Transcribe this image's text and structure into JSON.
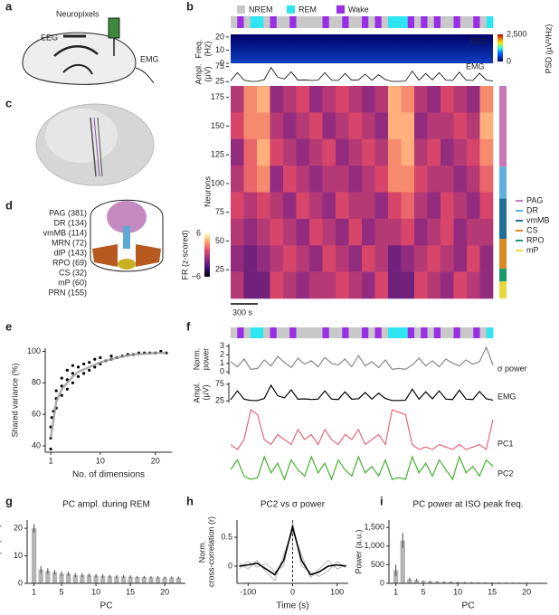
{
  "panel_labels": [
    "a",
    "b",
    "c",
    "d",
    "e",
    "f",
    "g",
    "h",
    "i"
  ],
  "panel_a": {
    "probe": "Neuropixels",
    "eeg": "EEG",
    "emg": "EMG"
  },
  "panel_d": {
    "regions": [
      {
        "label": "PAG (381)",
        "color": "#c48ac0"
      },
      {
        "label": "DR (134)",
        "color": "#5fa9d6"
      },
      {
        "label": "vmMB (114)",
        "color": "#1f6d9a"
      },
      {
        "label": "MRN (72)",
        "color": "#eaa0d6"
      },
      {
        "label": "dlP (143)",
        "color": "#e0876a"
      },
      {
        "label": "RPO (69)",
        "color": "#1a9a7a"
      },
      {
        "label": "CS (32)",
        "color": "#d88a20"
      },
      {
        "label": "mP (60)",
        "color": "#c8b020"
      },
      {
        "label": "PRN (155)",
        "color": "#b85a20"
      }
    ]
  },
  "chart_data": [
    {
      "type": "raster",
      "states": [
        {
          "name": "NREM",
          "color": "#c8c8c8"
        },
        {
          "name": "REM",
          "color": "#2ee6f2"
        },
        {
          "name": "Wake",
          "color": "#9a2de6"
        }
      ],
      "hypnogram": [
        0,
        2,
        0,
        1,
        1,
        0,
        2,
        0,
        0,
        2,
        0,
        0,
        0,
        0,
        2,
        0,
        0,
        2,
        0,
        0,
        2,
        0,
        2,
        0,
        1,
        1,
        1,
        2,
        0,
        2,
        0,
        2,
        0,
        0,
        2,
        0,
        0,
        2,
        0,
        1
      ],
      "freq": {
        "ylabel": [
          "Freq.",
          "(Hz)"
        ],
        "ylim": [
          0,
          22
        ],
        "yticks": [
          0,
          10,
          20
        ],
        "label": "EEG"
      },
      "psd": {
        "label": "PSD (µV²/Hz)",
        "ticks": [
          0,
          {
            "value": 2500,
            "label": "2,500"
          }
        ]
      },
      "emg": {
        "ylabel": [
          "Ampl.",
          "(µV)"
        ],
        "ylim": [
          20,
          80
        ],
        "yticks": [
          25,
          75
        ],
        "label": "EMG",
        "color": "#000000",
        "values": [
          28,
          55,
          30,
          26,
          26,
          32,
          72,
          40,
          34,
          58,
          30,
          31,
          29,
          30,
          55,
          30,
          29,
          52,
          30,
          31,
          50,
          30,
          48,
          32,
          26,
          26,
          27,
          60,
          30,
          52,
          31,
          55,
          30,
          29,
          57,
          30,
          29,
          53,
          31,
          27
        ]
      },
      "neurons": {
        "ylabel": "Neurons",
        "ylim": [
          0,
          185
        ],
        "yticks": [
          25,
          50,
          75,
          100,
          125,
          150,
          175
        ],
        "matrix": [
          [
            0,
            3,
            4,
            -1,
            0,
            1,
            -1,
            0,
            1,
            0,
            -1,
            0,
            4,
            3,
            0,
            -1,
            1,
            0,
            -1,
            3
          ],
          [
            1,
            3,
            3,
            0,
            -1,
            0,
            1,
            -1,
            0,
            1,
            0,
            -1,
            4,
            4,
            -1,
            0,
            0,
            1,
            0,
            4
          ],
          [
            -1,
            2,
            4,
            1,
            0,
            -1,
            0,
            1,
            -1,
            0,
            1,
            0,
            3,
            4,
            0,
            1,
            -1,
            0,
            1,
            3
          ],
          [
            0,
            2,
            3,
            -1,
            1,
            0,
            -1,
            0,
            0,
            -1,
            0,
            1,
            3,
            3,
            1,
            0,
            0,
            -1,
            0,
            2
          ],
          [
            1,
            0,
            1,
            0,
            -1,
            1,
            0,
            -1,
            1,
            0,
            0,
            -1,
            1,
            2,
            0,
            -1,
            1,
            0,
            -1,
            1
          ],
          [
            0,
            -1,
            0,
            1,
            0,
            -1,
            1,
            0,
            -1,
            1,
            -1,
            0,
            0,
            1,
            -1,
            0,
            1,
            -1,
            0,
            0
          ],
          [
            -1,
            -2,
            -1,
            0,
            1,
            0,
            -1,
            1,
            0,
            -1,
            1,
            0,
            -2,
            -1,
            0,
            1,
            0,
            -1,
            1,
            -1
          ],
          [
            0,
            -2,
            -2,
            1,
            0,
            -1,
            0,
            0,
            1,
            0,
            -1,
            1,
            -2,
            -2,
            1,
            0,
            -1,
            1,
            0,
            -1
          ]
        ]
      },
      "fr": {
        "label": "FR (z-scored)",
        "ticks": [
          6,
          {
            "value": -6,
            "label": "−6"
          }
        ]
      },
      "regions": [
        {
          "name": "PAG",
          "color": "#c977b8"
        },
        {
          "name": "DR",
          "color": "#5fb0e0"
        },
        {
          "name": "vmMB",
          "color": "#1f6d9a"
        },
        {
          "name": "CS",
          "color": "#d88a20"
        },
        {
          "name": "RPO",
          "color": "#1a9a6a"
        },
        {
          "name": "mP",
          "color": "#e8d840"
        }
      ],
      "scale_bar": "300 s"
    },
    {
      "type": "traces",
      "series": [
        {
          "name": "σ power",
          "ylabel": [
            "Norm.",
            "power"
          ],
          "ylim": [
            -0.3,
            3.3
          ],
          "yticks": [
            0,
            1,
            2,
            3
          ],
          "color": "#888888",
          "values": [
            1.2,
            0.6,
            1.5,
            0.3,
            0.4,
            1.4,
            0.7,
            1.8,
            1.1,
            0.5,
            1.6,
            0.9,
            1.3,
            0.6,
            1.7,
            1.0,
            0.8,
            1.5,
            0.6,
            1.9,
            0.7,
            1.2,
            0.5,
            1.4,
            0.3,
            0.4,
            0.3,
            0.8,
            1.6,
            0.7,
            1.3,
            0.6,
            1.5,
            1.0,
            0.7,
            1.4,
            0.9,
            1.2,
            2.9,
            0.8
          ]
        },
        {
          "name": "EMG",
          "ylabel": [
            "Ampl.",
            "(µV)"
          ],
          "ylim": [
            20,
            80
          ],
          "yticks": [
            25,
            75
          ],
          "color": "#000000",
          "values": [
            28,
            55,
            30,
            26,
            26,
            32,
            72,
            40,
            34,
            58,
            30,
            31,
            29,
            30,
            55,
            30,
            29,
            52,
            30,
            31,
            50,
            30,
            48,
            32,
            26,
            26,
            27,
            60,
            30,
            52,
            31,
            55,
            30,
            29,
            57,
            30,
            29,
            53,
            31,
            27
          ]
        },
        {
          "name": "PC1",
          "color": "#e8687e",
          "values": [
            0.2,
            0.1,
            0.3,
            0.9,
            0.8,
            0.3,
            0.2,
            0.4,
            0.3,
            0.2,
            0.5,
            0.3,
            0.4,
            0.2,
            0.5,
            0.3,
            0.2,
            0.4,
            0.3,
            0.5,
            0.2,
            0.3,
            0.4,
            0.2,
            0.9,
            0.85,
            0.8,
            0.2,
            0.1,
            0.15,
            0.1,
            0.2,
            0.15,
            0.1,
            0.2,
            0.1,
            0.15,
            0.2,
            0.1,
            0.7
          ]
        },
        {
          "name": "PC2",
          "color": "#44b030",
          "values": [
            0.5,
            0.8,
            0.3,
            0.2,
            0.25,
            0.9,
            0.4,
            0.7,
            0.2,
            0.8,
            0.5,
            0.3,
            0.9,
            0.4,
            0.7,
            0.2,
            0.8,
            0.5,
            0.3,
            0.9,
            0.4,
            0.6,
            0.3,
            0.8,
            0.2,
            0.25,
            0.2,
            0.9,
            0.4,
            0.7,
            0.3,
            0.8,
            0.5,
            0.2,
            0.9,
            0.4,
            0.6,
            0.3,
            0.8,
            0.6
          ]
        }
      ]
    },
    {
      "type": "scatter",
      "xlabel": "No. of dimensions",
      "ylabel": "Shared variance (%)",
      "xlim": [
        0,
        23
      ],
      "xticks": [
        1,
        10,
        20
      ],
      "ylim": [
        36,
        102
      ],
      "yticks": [
        40,
        60,
        80,
        100
      ],
      "series": [
        {
          "style": "points",
          "color": "#000000",
          "x": [
            1,
            1,
            1,
            1.2,
            1.5,
            2,
            2,
            2,
            3,
            3,
            3,
            4,
            4,
            4,
            5,
            5,
            5,
            6,
            6,
            7,
            7,
            8,
            8,
            9,
            9,
            10,
            10,
            11,
            12,
            12,
            13,
            14,
            15,
            16,
            17,
            18,
            19,
            20,
            21,
            22
          ],
          "values": [
            38,
            45,
            52,
            58,
            62,
            64,
            70,
            75,
            72,
            78,
            83,
            76,
            82,
            88,
            80,
            86,
            91,
            84,
            90,
            86,
            92,
            88,
            93,
            90,
            95,
            92,
            96,
            94,
            95,
            97,
            96,
            97,
            98,
            98,
            99,
            99,
            99,
            99,
            100,
            99
          ]
        },
        {
          "style": "line",
          "color": "#999999",
          "x": [
            1,
            2,
            3,
            4,
            5,
            6,
            8,
            10,
            13,
            16,
            20,
            22
          ],
          "values": [
            45,
            68,
            76,
            80,
            84,
            87,
            90,
            93,
            96,
            98,
            99,
            99
          ]
        }
      ]
    },
    {
      "type": "bar",
      "title": "PC ampl. during REM",
      "xlabel": "PC",
      "ylabel": "PC ampl. (a.u.)",
      "color": "#b4b4b4",
      "x": [
        1,
        2,
        3,
        4,
        5,
        6,
        7,
        8,
        9,
        10,
        11,
        12,
        13,
        14,
        15,
        16,
        17,
        18,
        19,
        20,
        21,
        22
      ],
      "values": [
        20,
        5,
        4.5,
        4,
        3.5,
        3.5,
        3,
        3,
        3,
        2.8,
        2.7,
        2.6,
        2.5,
        2.5,
        2.4,
        2.3,
        2.3,
        2.2,
        2.2,
        2.1,
        2.1,
        2.0
      ],
      "errors": [
        1.5,
        1.2,
        1,
        0.9,
        0.8,
        0.8,
        0.7,
        0.7,
        0.6,
        0.6,
        0.6,
        0.5,
        0.5,
        0.5,
        0.5,
        0.4,
        0.4,
        0.4,
        0.4,
        0.4,
        0.4,
        0.4
      ],
      "xlim": [
        0,
        23
      ],
      "xticks": [
        1,
        5,
        10,
        15,
        20
      ],
      "ylim": [
        0,
        23
      ],
      "yticks": [
        0,
        10,
        20
      ]
    },
    {
      "type": "line",
      "title": "PC2 vs σ power",
      "xlabel": "Time (s)",
      "ylabel": [
        "Norm.",
        "cross-correlation (r)"
      ],
      "x": [
        -120,
        -100,
        -80,
        -60,
        -40,
        -20,
        0,
        20,
        40,
        60,
        80,
        100,
        120
      ],
      "series": [
        {
          "color": "#b0b0b0",
          "values": [
            0.05,
            -0.05,
            0.1,
            -0.1,
            -0.25,
            0.2,
            0.6,
            0.2,
            -0.2,
            -0.05,
            0.1,
            -0.05,
            0.02
          ]
        },
        {
          "color": "#b0b0b0",
          "values": [
            -0.05,
            0.08,
            -0.02,
            0.05,
            -0.1,
            0.0,
            0.75,
            0.0,
            -0.1,
            -0.18,
            -0.08,
            0.08,
            -0.03
          ]
        },
        {
          "color": "#000000",
          "values": [
            0,
            0.02,
            0.05,
            -0.05,
            -0.15,
            0.1,
            0.68,
            0.1,
            -0.15,
            -0.1,
            0,
            0.02,
            0
          ]
        }
      ],
      "xlim": [
        -125,
        125
      ],
      "xticks": [
        -100,
        0,
        100
      ],
      "ylim": [
        -0.3,
        0.8
      ],
      "yticks": [
        0,
        0.5
      ]
    },
    {
      "type": "bar",
      "title": "PC power at ISO peak freq.",
      "xlabel": "PC",
      "ylabel": "Power (a.u.)",
      "color": "#b4b4b4",
      "x": [
        1,
        2,
        3,
        4,
        5,
        6,
        7,
        8,
        9,
        10,
        11,
        12,
        13,
        14,
        15,
        16,
        17,
        18,
        19,
        20,
        21,
        22
      ],
      "values": [
        350,
        1150,
        110,
        90,
        60,
        50,
        45,
        40,
        35,
        30,
        28,
        25,
        22,
        20,
        18,
        17,
        16,
        15,
        14,
        13,
        12,
        12
      ],
      "errors": [
        150,
        200,
        40,
        30,
        20,
        18,
        15,
        14,
        12,
        10,
        10,
        9,
        8,
        8,
        7,
        7,
        6,
        6,
        6,
        5,
        5,
        5
      ],
      "xlim": [
        0,
        23
      ],
      "xticks": [
        1,
        5,
        10,
        15,
        20
      ],
      "ylim": [
        0,
        1700
      ],
      "yticks": [
        0,
        500,
        {
          "value": 1000,
          "label": "1,000"
        },
        {
          "value": 1500,
          "label": "1,500"
        }
      ]
    }
  ]
}
